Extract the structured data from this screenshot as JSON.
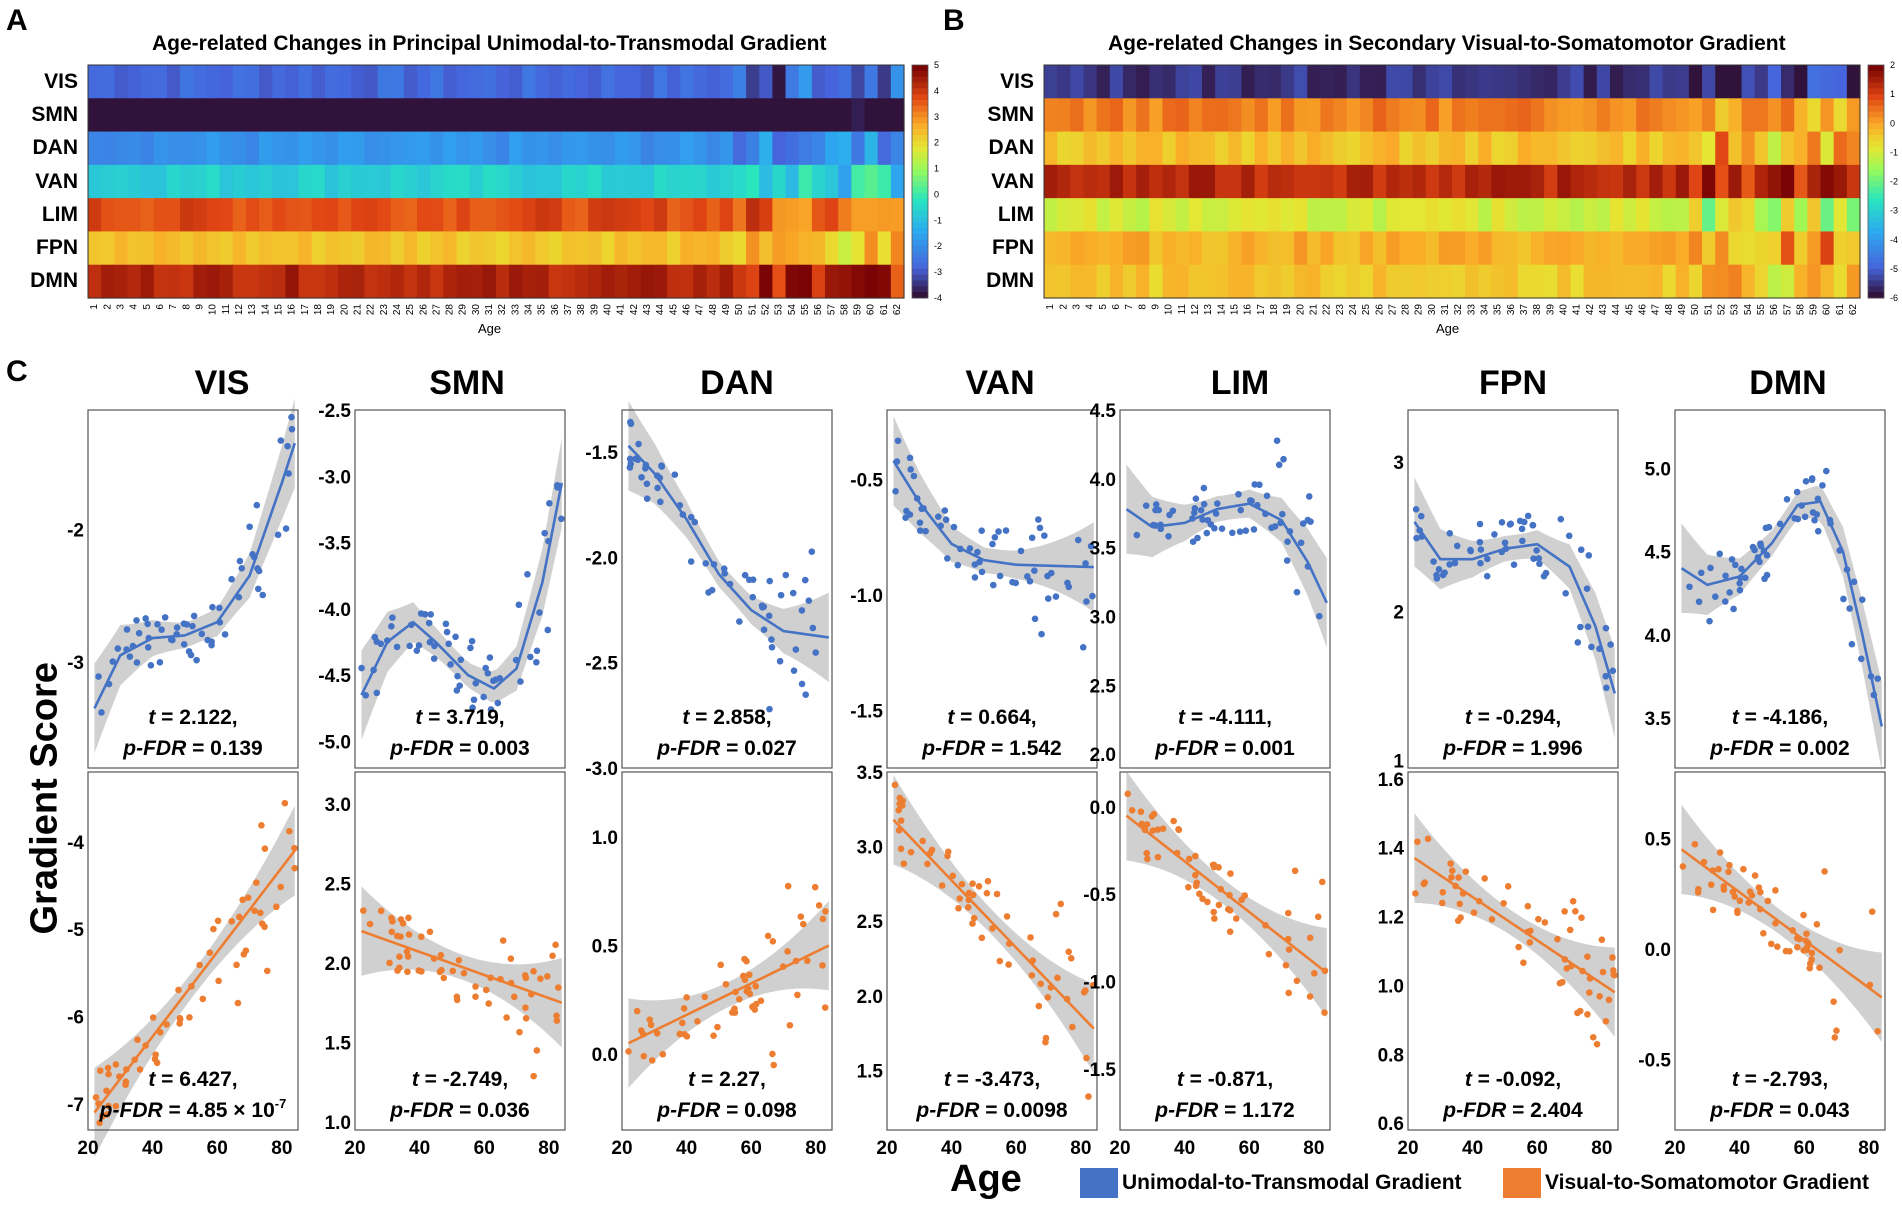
{
  "panels": {
    "a": "A",
    "b": "B",
    "c": "C"
  },
  "heatmap_a": {
    "title": "Age-related Changes in Principal Unimodal-to-Transmodal Gradient",
    "xlabel": "Age",
    "rows": [
      "VIS",
      "SMN",
      "DAN",
      "VAN",
      "LIM",
      "FPN",
      "DMN"
    ],
    "colorbar_ticks": [
      "5",
      "4",
      "3",
      "2",
      "1",
      "0",
      "-1",
      "-2",
      "-3",
      "-4"
    ],
    "vmin": -4,
    "vmax": 5,
    "row_base": [
      -2.8,
      -4.6,
      -2.0,
      -0.7,
      3.8,
      2.4,
      4.4
    ]
  },
  "heatmap_b": {
    "title": "Age-related Changes in Secondary Visual-to-Somatomotor Gradient",
    "xlabel": "Age",
    "rows": [
      "VIS",
      "SMN",
      "DAN",
      "VAN",
      "LIM",
      "FPN",
      "DMN"
    ],
    "colorbar_ticks": [
      "2",
      "1",
      "0",
      "-1",
      "-2",
      "-3",
      "-4",
      "-5",
      "-6"
    ],
    "vmin": -6,
    "vmax": 2,
    "row_base": [
      -5.6,
      0.4,
      -0.3,
      1.4,
      -1.0,
      -0.1,
      -0.4
    ]
  },
  "age_ticks": [
    "1",
    "2",
    "3",
    "4",
    "5",
    "6",
    "7",
    "8",
    "9",
    "10",
    "11",
    "12",
    "13",
    "14",
    "15",
    "16",
    "17",
    "18",
    "19",
    "20",
    "21",
    "22",
    "23",
    "24",
    "25",
    "26",
    "27",
    "28",
    "29",
    "30",
    "31",
    "32",
    "33",
    "34",
    "35",
    "36",
    "37",
    "38",
    "39",
    "40",
    "41",
    "42",
    "43",
    "44",
    "45",
    "46",
    "47",
    "48",
    "49",
    "50",
    "51",
    "52",
    "53",
    "54",
    "55",
    "56",
    "57",
    "58",
    "59",
    "60",
    "61",
    "62"
  ],
  "y_axis_label": "Gradient Score",
  "x_axis_label": "Age",
  "legend": [
    {
      "label": "Unimodal-to-Transmodal Gradient",
      "color": "#4472c4"
    },
    {
      "label": "Visual-to-Somatomotor Gradient",
      "color": "#ed7d31"
    }
  ],
  "colors": {
    "blue": "#4472c4",
    "orange": "#ed7d31",
    "band": "#c8c8c8"
  },
  "chart_data": [
    {
      "type": "scatter",
      "region": "VIS",
      "gradient": "principal",
      "xlim": [
        20,
        85
      ],
      "ylim": [
        -3.8,
        -1.1
      ],
      "yticks": [
        "-2",
        "-3"
      ],
      "ytick_values": [
        -2,
        -3
      ],
      "xticks": [
        "20",
        "40",
        "60",
        "80"
      ],
      "fit": [
        [
          22,
          -3.35
        ],
        [
          30,
          -2.95
        ],
        [
          40,
          -2.82
        ],
        [
          50,
          -2.8
        ],
        [
          60,
          -2.7
        ],
        [
          70,
          -2.35
        ],
        [
          80,
          -1.65
        ],
        [
          84,
          -1.35
        ]
      ],
      "stat_t": "2.122,",
      "stat_p": "0.139"
    },
    {
      "type": "scatter",
      "region": "SMN",
      "gradient": "principal",
      "xlim": [
        20,
        85
      ],
      "ylim": [
        -5.2,
        -2.5
      ],
      "yticks": [
        "-2.5",
        "-3.0",
        "-3.5",
        "-4.0",
        "-4.5",
        "-5.0"
      ],
      "ytick_values": [
        -2.5,
        -3.0,
        -3.5,
        -4.0,
        -4.5,
        -5.0
      ],
      "xticks": [
        "20",
        "40",
        "60",
        "80"
      ],
      "fit": [
        [
          22,
          -4.65
        ],
        [
          30,
          -4.25
        ],
        [
          38,
          -4.1
        ],
        [
          45,
          -4.25
        ],
        [
          55,
          -4.5
        ],
        [
          63,
          -4.6
        ],
        [
          70,
          -4.45
        ],
        [
          78,
          -3.8
        ],
        [
          84,
          -3.05
        ]
      ],
      "stat_t": "3.719,",
      "stat_p": "0.003"
    },
    {
      "type": "scatter",
      "region": "DAN",
      "gradient": "principal",
      "xlim": [
        20,
        85
      ],
      "ylim": [
        -3.0,
        -1.3
      ],
      "yticks": [
        "-1.5",
        "-2.0",
        "-2.5",
        "-3.0"
      ],
      "ytick_values": [
        -1.5,
        -2.0,
        -2.5,
        -3.0
      ],
      "xticks": [
        "20",
        "40",
        "60",
        "80"
      ],
      "fit": [
        [
          22,
          -1.47
        ],
        [
          30,
          -1.6
        ],
        [
          40,
          -1.82
        ],
        [
          50,
          -2.08
        ],
        [
          60,
          -2.25
        ],
        [
          70,
          -2.35
        ],
        [
          84,
          -2.38
        ]
      ],
      "stat_t": "2.858,",
      "stat_p": "0.027"
    },
    {
      "type": "scatter",
      "region": "VAN",
      "gradient": "principal",
      "xlim": [
        20,
        85
      ],
      "ylim": [
        -1.75,
        -0.2
      ],
      "yticks": [
        "-0.5",
        "-1.0",
        "-1.5"
      ],
      "ytick_values": [
        -0.5,
        -1.0,
        -1.5
      ],
      "xticks": [
        "20",
        "40",
        "60",
        "80"
      ],
      "fit": [
        [
          22,
          -0.42
        ],
        [
          30,
          -0.6
        ],
        [
          40,
          -0.78
        ],
        [
          50,
          -0.85
        ],
        [
          60,
          -0.87
        ],
        [
          84,
          -0.88
        ]
      ],
      "stat_t": "0.664,",
      "stat_p": "1.542"
    },
    {
      "type": "scatter",
      "region": "LIM",
      "gradient": "principal",
      "xlim": [
        20,
        85
      ],
      "ylim": [
        1.9,
        4.5
      ],
      "yticks": [
        "4.5",
        "4.0",
        "3.5",
        "3.0",
        "2.5",
        "2.0"
      ],
      "ytick_values": [
        4.5,
        4.0,
        3.5,
        3.0,
        2.5,
        2.0
      ],
      "xticks": [
        "20",
        "40",
        "60",
        "80"
      ],
      "fit": [
        [
          22,
          3.78
        ],
        [
          30,
          3.65
        ],
        [
          40,
          3.68
        ],
        [
          50,
          3.78
        ],
        [
          60,
          3.82
        ],
        [
          70,
          3.7
        ],
        [
          78,
          3.4
        ],
        [
          84,
          3.1
        ]
      ],
      "stat_t": "-4.111,",
      "stat_p": "0.001"
    },
    {
      "type": "scatter",
      "region": "FPN",
      "gradient": "principal",
      "xlim": [
        20,
        85
      ],
      "ylim": [
        0.95,
        3.35
      ],
      "yticks": [
        "3",
        "2",
        "1"
      ],
      "ytick_values": [
        3,
        2,
        1
      ],
      "xticks": [
        "20",
        "40",
        "60",
        "80"
      ],
      "fit": [
        [
          22,
          2.6
        ],
        [
          30,
          2.35
        ],
        [
          40,
          2.35
        ],
        [
          50,
          2.42
        ],
        [
          60,
          2.45
        ],
        [
          70,
          2.3
        ],
        [
          78,
          1.9
        ],
        [
          84,
          1.45
        ]
      ],
      "stat_t": "-0.294,",
      "stat_p": "1.996"
    },
    {
      "type": "scatter",
      "region": "DMN",
      "gradient": "principal",
      "xlim": [
        20,
        85
      ],
      "ylim": [
        3.2,
        5.35
      ],
      "yticks": [
        "5.0",
        "4.5",
        "4.0",
        "3.5"
      ],
      "ytick_values": [
        5.0,
        4.5,
        4.0,
        3.5
      ],
      "xticks": [
        "20",
        "40",
        "60",
        "80"
      ],
      "fit": [
        [
          22,
          4.4
        ],
        [
          30,
          4.3
        ],
        [
          40,
          4.35
        ],
        [
          50,
          4.55
        ],
        [
          58,
          4.78
        ],
        [
          65,
          4.8
        ],
        [
          72,
          4.5
        ],
        [
          78,
          4.0
        ],
        [
          84,
          3.45
        ]
      ],
      "stat_t": "-4.186,",
      "stat_p": "0.002"
    },
    {
      "type": "scatter",
      "region": "VIS",
      "gradient": "secondary",
      "xlim": [
        20,
        85
      ],
      "ylim": [
        -7.3,
        -3.2
      ],
      "yticks": [
        "-4",
        "-5",
        "-6",
        "-7"
      ],
      "ytick_values": [
        -4,
        -5,
        -6,
        -7
      ],
      "xticks": [
        "20",
        "40",
        "60",
        "80"
      ],
      "fit": [
        [
          22,
          -7.1
        ],
        [
          84,
          -4.1
        ]
      ],
      "stat_t": "6.427,",
      "stat_p": "4.85 × 10",
      "stat_exp": "-7"
    },
    {
      "type": "scatter",
      "region": "SMN",
      "gradient": "secondary",
      "xlim": [
        20,
        85
      ],
      "ylim": [
        0.95,
        3.2
      ],
      "yticks": [
        "3.0",
        "2.5",
        "2.0",
        "1.5",
        "1.0"
      ],
      "ytick_values": [
        3.0,
        2.5,
        2.0,
        1.5,
        1.0
      ],
      "xticks": [
        "20",
        "40",
        "60",
        "80"
      ],
      "fit": [
        [
          22,
          2.2
        ],
        [
          84,
          1.75
        ]
      ],
      "stat_t": "-2.749,",
      "stat_p": "0.036"
    },
    {
      "type": "scatter",
      "region": "DAN",
      "gradient": "secondary",
      "xlim": [
        20,
        85
      ],
      "ylim": [
        -0.35,
        1.3
      ],
      "yticks": [
        "1.0",
        "0.5",
        "0.0"
      ],
      "ytick_values": [
        1.0,
        0.5,
        0.0
      ],
      "xticks": [
        "20",
        "40",
        "60",
        "80"
      ],
      "fit": [
        [
          22,
          0.05
        ],
        [
          84,
          0.5
        ]
      ],
      "stat_t": "2.27,",
      "stat_p": "0.098"
    },
    {
      "type": "scatter",
      "region": "VAN",
      "gradient": "secondary",
      "xlim": [
        20,
        85
      ],
      "ylim": [
        1.1,
        3.5
      ],
      "yticks": [
        "3.5",
        "3.0",
        "2.5",
        "2.0",
        "1.5"
      ],
      "ytick_values": [
        3.5,
        3.0,
        2.5,
        2.0,
        1.5
      ],
      "xticks": [
        "20",
        "40",
        "60",
        "80"
      ],
      "fit": [
        [
          22,
          3.18
        ],
        [
          84,
          1.78
        ]
      ],
      "stat_t": "-3.473,",
      "stat_p": "0.0098"
    },
    {
      "type": "scatter",
      "region": "LIM",
      "gradient": "secondary",
      "xlim": [
        20,
        85
      ],
      "ylim": [
        -1.85,
        0.2
      ],
      "yticks": [
        "0.0",
        "-0.5",
        "-1.0",
        "-1.5"
      ],
      "ytick_values": [
        0.0,
        -0.5,
        -1.0,
        -1.5
      ],
      "xticks": [
        "20",
        "40",
        "60",
        "80"
      ],
      "fit": [
        [
          22,
          -0.05
        ],
        [
          84,
          -0.95
        ]
      ],
      "stat_t": "-0.871,",
      "stat_p": "1.172"
    },
    {
      "type": "scatter",
      "region": "FPN",
      "gradient": "secondary",
      "xlim": [
        20,
        85
      ],
      "ylim": [
        0.58,
        1.62
      ],
      "yticks": [
        "1.6",
        "1.4",
        "1.2",
        "1.0",
        "0.8",
        "0.6"
      ],
      "ytick_values": [
        1.6,
        1.4,
        1.2,
        1.0,
        0.8,
        0.6
      ],
      "xticks": [
        "20",
        "40",
        "60",
        "80"
      ],
      "fit": [
        [
          22,
          1.37
        ],
        [
          84,
          0.98
        ]
      ],
      "stat_t": "-0.092,",
      "stat_p": "2.404"
    },
    {
      "type": "scatter",
      "region": "DMN",
      "gradient": "secondary",
      "xlim": [
        20,
        85
      ],
      "ylim": [
        -0.82,
        0.8
      ],
      "yticks": [
        "0.5",
        "0.0",
        "-0.5"
      ],
      "ytick_values": [
        0.5,
        0.0,
        -0.5
      ],
      "xticks": [
        "20",
        "40",
        "60",
        "80"
      ],
      "fit": [
        [
          22,
          0.45
        ],
        [
          84,
          -0.22
        ]
      ],
      "stat_t": "-2.793,",
      "stat_p": "0.043"
    }
  ]
}
